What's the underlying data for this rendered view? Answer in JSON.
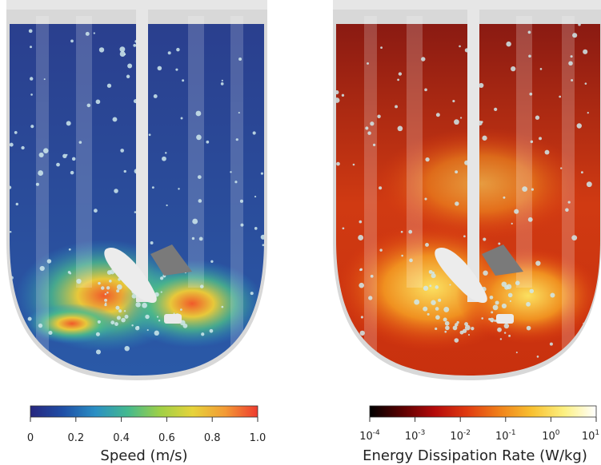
{
  "panels": [
    {
      "colorbar": {
        "label": "Speed (m/s)",
        "scale": "linear",
        "range": [
          0,
          1
        ],
        "ticks": [
          0,
          0.2,
          0.4,
          0.6,
          0.8,
          {
            "value": 1,
            "label": "1.0"
          }
        ],
        "colors": [
          "#27277f",
          "#1f4ea6",
          "#2a8fc4",
          "#44b98e",
          "#9fd046",
          "#e6d33a",
          "#f39a35",
          "#ee3b2f"
        ]
      }
    },
    {
      "colorbar": {
        "label": "Energy Dissipation Rate (W/kg)",
        "scale": "log",
        "range": [
          0.0001,
          10
        ],
        "ticks": [
          {
            "value": 0.0001,
            "base": "10",
            "exponent": "-4"
          },
          {
            "value": 0.001,
            "base": "10",
            "exponent": "-3"
          },
          {
            "value": 0.01,
            "base": "10",
            "exponent": "-2"
          },
          {
            "value": 0.1,
            "base": "10",
            "exponent": "-1"
          },
          {
            "value": 1,
            "base": "10",
            "exponent": "0"
          },
          {
            "value": 10,
            "base": "10",
            "exponent": "1"
          }
        ],
        "colors": [
          "#000000",
          "#5a0000",
          "#b40a0a",
          "#e03a10",
          "#f0801a",
          "#f8c030",
          "#fcf080",
          "#ffffff"
        ]
      }
    }
  ]
}
